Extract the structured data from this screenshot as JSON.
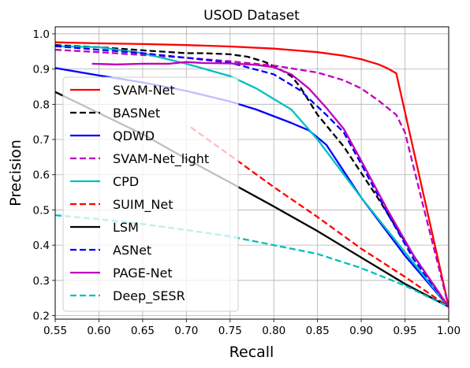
{
  "chart_data": {
    "type": "line",
    "title": "USOD Dataset",
    "xlabel": "Recall",
    "ylabel": "Precision",
    "xlim": [
      0.55,
      1.0
    ],
    "ylim": [
      0.19,
      1.02
    ],
    "x_ticks": [
      "0.55",
      "0.60",
      "0.65",
      "0.70",
      "0.75",
      "0.80",
      "0.85",
      "0.90",
      "0.95",
      "1.00"
    ],
    "y_ticks": [
      "0.2",
      "0.3",
      "0.4",
      "0.5",
      "0.6",
      "0.7",
      "0.8",
      "0.9",
      "1.0"
    ],
    "grid": true,
    "legend_position": "left",
    "series": [
      {
        "name": "SVAM-Net",
        "color": "#ff0000",
        "style": "solid",
        "x": [
          0.55,
          0.6,
          0.65,
          0.7,
          0.75,
          0.8,
          0.85,
          0.88,
          0.9,
          0.92,
          0.93,
          0.94,
          1.0
        ],
        "y": [
          0.976,
          0.973,
          0.971,
          0.968,
          0.964,
          0.958,
          0.948,
          0.938,
          0.928,
          0.913,
          0.902,
          0.888,
          0.225
        ]
      },
      {
        "name": "BASNet",
        "color": "#000000",
        "style": "dashed",
        "x": [
          0.55,
          0.6,
          0.65,
          0.7,
          0.72,
          0.75,
          0.77,
          0.79,
          0.8,
          0.81,
          0.82,
          0.83,
          0.85,
          0.88,
          0.92,
          0.96,
          1.0
        ],
        "y": [
          0.968,
          0.962,
          0.953,
          0.945,
          0.945,
          0.942,
          0.935,
          0.92,
          0.908,
          0.895,
          0.88,
          0.85,
          0.77,
          0.68,
          0.53,
          0.37,
          0.225
        ]
      },
      {
        "name": "QDWD",
        "color": "#0000ff",
        "style": "solid",
        "x": [
          0.55,
          0.6,
          0.65,
          0.7,
          0.75,
          0.78,
          0.8,
          0.82,
          0.84,
          0.86,
          0.9,
          0.95,
          1.0
        ],
        "y": [
          0.903,
          0.882,
          0.862,
          0.838,
          0.808,
          0.785,
          0.766,
          0.747,
          0.726,
          0.685,
          0.535,
          0.37,
          0.225
        ]
      },
      {
        "name": "SVAM-Net_light",
        "color": "#bf00bf",
        "style": "dashed",
        "x": [
          0.55,
          0.6,
          0.65,
          0.7,
          0.75,
          0.8,
          0.85,
          0.88,
          0.9,
          0.92,
          0.94,
          0.95,
          0.97,
          1.0
        ],
        "y": [
          0.955,
          0.948,
          0.94,
          0.932,
          0.922,
          0.91,
          0.89,
          0.868,
          0.845,
          0.81,
          0.77,
          0.72,
          0.52,
          0.225
        ]
      },
      {
        "name": "CPD",
        "color": "#00bfbf",
        "style": "solid",
        "x": [
          0.55,
          0.6,
          0.65,
          0.7,
          0.75,
          0.78,
          0.8,
          0.82,
          0.85,
          0.9,
          0.95,
          1.0
        ],
        "y": [
          0.965,
          0.962,
          0.945,
          0.915,
          0.88,
          0.845,
          0.815,
          0.785,
          0.7,
          0.535,
          0.38,
          0.225
        ]
      },
      {
        "name": "SUIM_Net",
        "color": "#ff0000",
        "style": "dashed",
        "x": [
          0.705,
          0.75,
          0.8,
          0.85,
          0.9,
          0.95,
          1.0
        ],
        "y": [
          0.735,
          0.655,
          0.565,
          0.48,
          0.39,
          0.31,
          0.225
        ]
      },
      {
        "name": "LSM",
        "color": "#000000",
        "style": "solid",
        "x": [
          0.55,
          0.6,
          0.65,
          0.7,
          0.75,
          0.8,
          0.85,
          0.9,
          0.95,
          1.0
        ],
        "y": [
          0.835,
          0.775,
          0.715,
          0.645,
          0.578,
          0.51,
          0.44,
          0.365,
          0.29,
          0.225
        ]
      },
      {
        "name": "ASNet",
        "color": "#0000ff",
        "style": "dashed",
        "x": [
          0.55,
          0.6,
          0.65,
          0.7,
          0.75,
          0.8,
          0.83,
          0.86,
          0.88,
          0.9,
          0.93,
          0.96,
          1.0
        ],
        "y": [
          0.965,
          0.955,
          0.945,
          0.932,
          0.918,
          0.885,
          0.84,
          0.77,
          0.72,
          0.63,
          0.49,
          0.36,
          0.225
        ]
      },
      {
        "name": "PAGE-Net",
        "color": "#bf00bf",
        "style": "solid",
        "x": [
          0.592,
          0.62,
          0.65,
          0.68,
          0.7,
          0.72,
          0.75,
          0.78,
          0.8,
          0.82,
          0.84,
          0.86,
          0.88,
          0.9,
          0.93,
          0.96,
          1.0
        ],
        "y": [
          0.915,
          0.913,
          0.915,
          0.915,
          0.92,
          0.917,
          0.916,
          0.912,
          0.905,
          0.885,
          0.845,
          0.79,
          0.73,
          0.64,
          0.5,
          0.37,
          0.225
        ]
      },
      {
        "name": "Deep_SESR",
        "color": "#00bfbf",
        "style": "dashed",
        "x": [
          0.55,
          0.6,
          0.65,
          0.7,
          0.75,
          0.8,
          0.85,
          0.9,
          0.95,
          1.0
        ],
        "y": [
          0.485,
          0.474,
          0.46,
          0.443,
          0.425,
          0.4,
          0.375,
          0.335,
          0.285,
          0.225
        ]
      }
    ]
  }
}
